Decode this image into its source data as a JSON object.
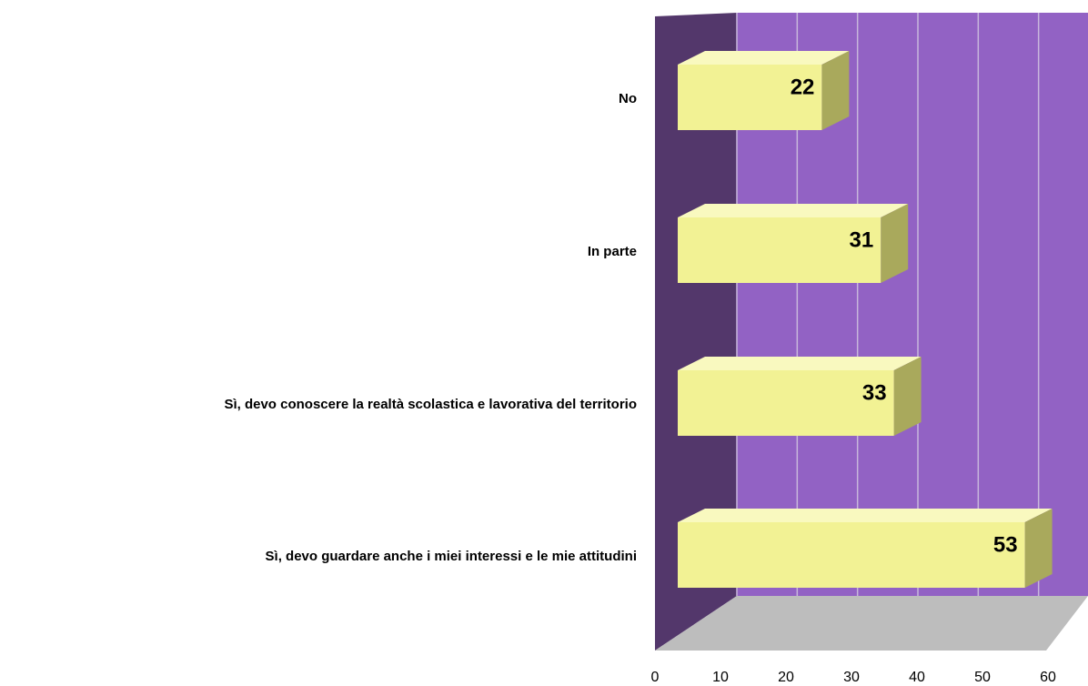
{
  "chart_data": {
    "type": "bar",
    "orientation": "horizontal",
    "categories": [
      "No",
      "In parte",
      "Sì, devo conoscere la realtà scolastica e lavorativa del territorio",
      "Sì, devo guardare anche i miei interessi e le mie attitudini"
    ],
    "values": [
      22,
      31,
      33,
      53
    ],
    "color": "#f2f294",
    "xlim": [
      0,
      60
    ],
    "xticks": [
      0,
      10,
      20,
      30,
      40,
      50,
      60
    ],
    "grid": true
  }
}
